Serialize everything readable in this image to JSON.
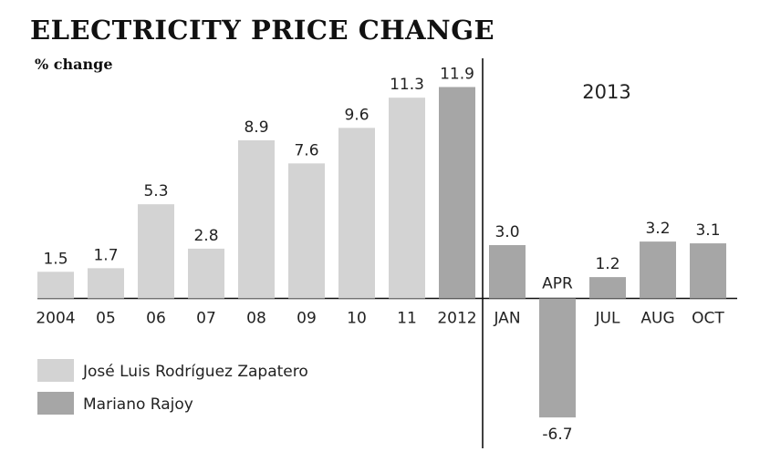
{
  "chart_data": {
    "type": "bar",
    "title": "ELECTRICITY PRICE CHANGE",
    "ylabel": "% change",
    "ylim": [
      -6.7,
      11.9
    ],
    "colors": {
      "zapatero": "#d3d3d3",
      "rajoy": "#a6a6a6"
    },
    "groups": [
      {
        "label": "",
        "bars": [
          {
            "category": "2004",
            "value": 1.5,
            "value_label": "1.5",
            "series": "zapatero"
          },
          {
            "category": "05",
            "value": 1.7,
            "value_label": "1.7",
            "series": "zapatero"
          },
          {
            "category": "06",
            "value": 5.3,
            "value_label": "5.3",
            "series": "zapatero"
          },
          {
            "category": "07",
            "value": 2.8,
            "value_label": "2.8",
            "series": "zapatero"
          },
          {
            "category": "08",
            "value": 8.9,
            "value_label": "8.9",
            "series": "zapatero"
          },
          {
            "category": "09",
            "value": 7.6,
            "value_label": "7.6",
            "series": "zapatero"
          },
          {
            "category": "10",
            "value": 9.6,
            "value_label": "9.6",
            "series": "zapatero"
          },
          {
            "category": "11",
            "value": 11.3,
            "value_label": "11.3",
            "series": "zapatero"
          },
          {
            "category": "2012",
            "value": 11.9,
            "value_label": "11.9",
            "series": "rajoy"
          }
        ]
      },
      {
        "label": "2013",
        "bars": [
          {
            "category": "JAN",
            "value": 3.0,
            "value_label": "3.0",
            "series": "rajoy"
          },
          {
            "category": "APR",
            "value": -6.7,
            "value_label": "-6.7",
            "series": "rajoy"
          },
          {
            "category": "JUL",
            "value": 1.2,
            "value_label": "1.2",
            "series": "rajoy"
          },
          {
            "category": "AUG",
            "value": 3.2,
            "value_label": "3.2",
            "series": "rajoy"
          },
          {
            "category": "OCT",
            "value": 3.1,
            "value_label": "3.1",
            "series": "rajoy"
          }
        ]
      }
    ],
    "legend": {
      "position": "bottom-left",
      "entries": [
        {
          "series": "zapatero",
          "name": "José Luis Rodríguez Zapatero"
        },
        {
          "series": "rajoy",
          "name": "Mariano Rajoy"
        }
      ]
    }
  }
}
